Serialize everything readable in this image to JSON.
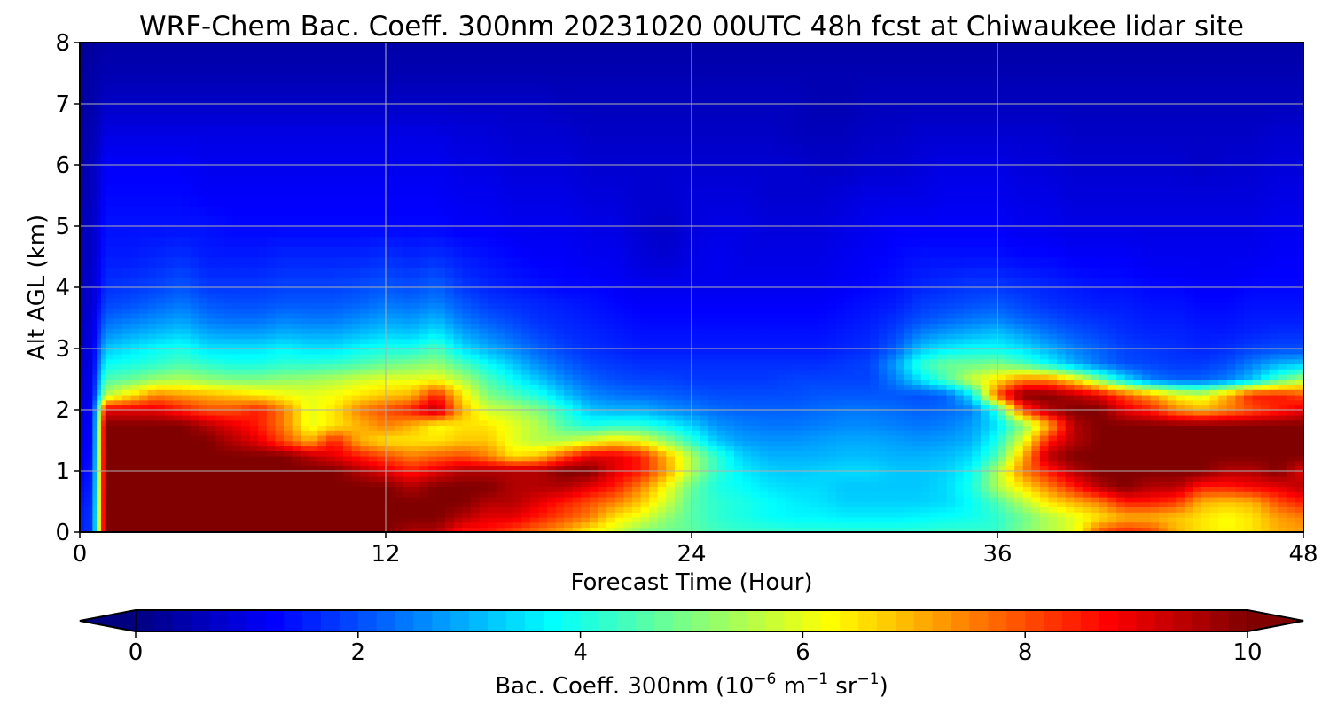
{
  "chart_data": {
    "type": "heatmap",
    "title": "WRF-Chem Bac. Coeff. 300nm  20231020 00UTC 48h fcst at Chiwaukee lidar site",
    "xlabel": "Forecast Time (Hour)",
    "ylabel": "Alt AGL (km)",
    "xlim": [
      0,
      48
    ],
    "ylim": [
      0,
      8
    ],
    "xticks": [
      "0",
      "12",
      "24",
      "36",
      "48"
    ],
    "yticks": [
      "0",
      "1",
      "2",
      "3",
      "4",
      "5",
      "6",
      "7",
      "8"
    ],
    "grid": true,
    "colormap": "jet",
    "colorbar": {
      "orientation": "horizontal",
      "placement": "bottom",
      "extend": "both",
      "range": [
        0,
        10
      ],
      "ticks": [
        "0",
        "2",
        "4",
        "6",
        "8",
        "10"
      ],
      "label_main": "Bac. Coeff. 300nm  (10",
      "label_exp1": "−6",
      "label_mid": " m",
      "label_exp2": "−1",
      "label_mid2": " sr",
      "label_exp3": "−1",
      "label_end": ")"
    },
    "time_hours": [
      0,
      0.5,
      1,
      2,
      3,
      4,
      5,
      6,
      7,
      8,
      9,
      10,
      11,
      12,
      13,
      14,
      15,
      16,
      17,
      18,
      19,
      20,
      21,
      22,
      23,
      24,
      25,
      26,
      27,
      28,
      29,
      30,
      31,
      32,
      33,
      34,
      35,
      36,
      37,
      38,
      39,
      40,
      41,
      42,
      43,
      44,
      45,
      46,
      47,
      48
    ],
    "altitude_km": [
      0,
      0.25,
      0.5,
      0.75,
      1,
      1.25,
      1.5,
      1.75,
      2,
      2.25,
      2.5,
      2.75,
      3,
      3.25,
      3.5,
      3.75,
      4,
      4.5,
      5,
      5.5,
      6,
      6.5,
      7,
      7.5,
      8
    ],
    "values": [
      [
        1.5,
        1.8,
        10,
        10,
        10,
        10,
        10,
        10,
        10,
        10,
        10,
        10,
        10,
        10,
        9.5,
        9.5,
        8.5,
        8.5,
        8,
        7.5,
        7,
        6.2,
        5.8,
        5,
        4.8,
        4.7,
        4.4,
        4.3,
        4.3,
        4.2,
        4.2,
        4.2,
        4.2,
        4.2,
        4.2,
        4.3,
        4.3,
        4.3,
        5,
        5.5,
        6,
        8,
        8.5,
        8.2,
        7,
        6.5,
        6.3,
        6.5,
        7,
        7.2
      ],
      [
        1.5,
        1.8,
        10,
        10,
        10,
        10,
        10,
        10,
        10,
        10,
        10,
        10,
        10,
        10,
        10,
        10,
        9.5,
        9,
        9,
        8.5,
        8,
        7.5,
        6.5,
        6,
        5.2,
        4.6,
        4.2,
        4,
        3.8,
        3.7,
        3.7,
        3.6,
        3.6,
        3.6,
        3.7,
        3.8,
        3.9,
        4.2,
        4.8,
        5.5,
        6,
        6.5,
        7,
        7,
        6.8,
        6.5,
        6.2,
        6.5,
        7.2,
        7.5
      ],
      [
        1.4,
        1.7,
        10,
        10,
        10,
        10,
        10,
        10,
        10,
        10,
        10,
        10,
        10,
        10,
        10,
        10,
        10,
        9.5,
        9.5,
        9,
        8.5,
        8,
        7.5,
        6.8,
        5.8,
        4.6,
        4.2,
        4,
        3.8,
        3.6,
        3.5,
        3.3,
        3.3,
        3.3,
        3.3,
        3.4,
        3.8,
        4.5,
        5.5,
        6.5,
        7,
        7.5,
        8.5,
        8.5,
        8.2,
        7,
        6.8,
        7,
        8,
        8.5
      ],
      [
        1.3,
        1.6,
        10,
        10,
        10,
        10,
        10,
        10,
        10,
        10,
        10,
        10,
        10,
        10,
        9.5,
        10,
        10,
        10,
        9.5,
        9.5,
        9.5,
        9,
        8.5,
        7.5,
        6.2,
        4.8,
        4,
        3.8,
        3.5,
        3.4,
        3.4,
        3.2,
        3.2,
        3.2,
        3.2,
        3.4,
        4,
        5.5,
        6.5,
        7.5,
        8.5,
        9.5,
        10,
        9.5,
        9.5,
        8.5,
        8.5,
        8.8,
        9,
        9.5
      ],
      [
        1.2,
        1.5,
        10,
        10,
        10,
        10,
        10,
        10,
        10,
        10,
        10,
        10,
        9.5,
        9,
        8.5,
        9,
        9.5,
        9.5,
        9.5,
        9.5,
        10,
        10,
        9,
        8.5,
        7.2,
        5.5,
        4.2,
        3.6,
        3.3,
        3.2,
        3.3,
        3.4,
        3.4,
        3.2,
        3.2,
        3.3,
        3.8,
        5.5,
        7.5,
        8.5,
        9.5,
        10,
        10,
        10,
        10,
        10,
        9.5,
        9.5,
        10,
        9
      ],
      [
        1.1,
        1.4,
        10,
        10,
        10,
        10,
        10,
        10,
        10,
        10,
        9.5,
        9,
        8.5,
        8,
        7.5,
        7.8,
        8,
        7.5,
        6.5,
        6.8,
        8,
        9,
        9,
        8.5,
        7,
        5.5,
        4.2,
        3.3,
        3,
        3,
        3,
        3.1,
        3.1,
        3,
        3,
        3.1,
        3.4,
        4.5,
        7,
        9.5,
        10,
        10,
        10,
        10,
        10,
        10,
        10,
        10,
        10,
        10
      ],
      [
        1,
        1.3,
        10,
        10,
        10,
        10,
        10,
        9.5,
        9,
        8,
        7,
        8.5,
        7,
        6.5,
        6.5,
        6.5,
        6.8,
        6.8,
        6,
        5.5,
        5.5,
        6,
        6.5,
        6.2,
        5.2,
        4.2,
        3.2,
        2.8,
        2.7,
        2.7,
        2.8,
        2.9,
        2.9,
        2.8,
        2.7,
        2.8,
        3,
        4,
        6,
        8.5,
        9.5,
        10,
        10,
        10,
        10,
        10,
        10,
        10,
        10,
        10
      ],
      [
        1,
        1.2,
        10,
        10,
        10,
        10,
        9.5,
        9,
        8.5,
        7.5,
        6,
        6.5,
        7,
        7.5,
        7,
        6.2,
        6.5,
        6.5,
        6,
        5.5,
        4.5,
        4,
        4.2,
        4.2,
        3.8,
        3.3,
        2.7,
        2.5,
        2.4,
        2.4,
        2.5,
        2.6,
        2.6,
        2.5,
        2.4,
        2.5,
        2.8,
        3.5,
        5,
        7,
        9.5,
        10,
        10,
        10,
        10,
        10,
        10,
        10,
        10,
        10
      ],
      [
        0.9,
        1.2,
        9,
        9,
        9,
        8.5,
        8,
        8,
        8.5,
        7.5,
        6,
        6.5,
        7.5,
        8,
        8.5,
        9.5,
        7,
        5.8,
        5.5,
        5,
        4.1,
        3.2,
        3,
        3,
        2.7,
        2.5,
        2.3,
        2.2,
        2.2,
        2.2,
        2.3,
        2.4,
        2.4,
        2.3,
        2.2,
        2.3,
        2.5,
        4,
        8,
        9.5,
        10,
        10,
        9,
        8.5,
        7.5,
        7,
        7.5,
        8,
        8.5,
        9
      ],
      [
        0.9,
        1.1,
        5.5,
        6.5,
        7.5,
        7.2,
        7,
        6.8,
        6.5,
        6.2,
        6,
        6.2,
        6.5,
        6.8,
        7,
        8.5,
        6.5,
        5,
        4.5,
        4,
        3.2,
        2.6,
        2.4,
        2.3,
        2.2,
        2.1,
        2,
        2,
        2,
        2,
        2.1,
        2.1,
        2.1,
        2.1,
        2,
        2.2,
        3.5,
        8,
        10,
        10,
        9.5,
        9,
        8,
        7.2,
        6.2,
        5.8,
        7,
        8.5,
        8.5,
        8
      ],
      [
        0.8,
        1.1,
        4.5,
        4.8,
        5.3,
        5.5,
        5.2,
        5,
        5,
        5.2,
        5.3,
        5.5,
        5.8,
        6,
        6,
        6.2,
        5.5,
        4.5,
        3.8,
        3.2,
        2.6,
        2.2,
        2,
        1.9,
        1.9,
        1.8,
        1.8,
        1.8,
        1.8,
        1.9,
        1.9,
        1.9,
        1.9,
        2.5,
        3.5,
        4.5,
        5.8,
        6.5,
        7.5,
        7.5,
        6.5,
        5,
        3.5,
        2.5,
        2.2,
        2.2,
        2.5,
        3.2,
        4.5,
        5.5
      ],
      [
        0.8,
        1,
        3.8,
        4,
        4.2,
        4.5,
        4.2,
        4,
        4,
        4.2,
        4.2,
        4.3,
        4.5,
        4.8,
        5,
        5.2,
        4.5,
        3.8,
        3.2,
        2.6,
        2.2,
        1.9,
        1.8,
        1.7,
        1.7,
        1.7,
        1.7,
        1.7,
        1.7,
        1.7,
        1.7,
        1.8,
        1.9,
        2.8,
        4.2,
        4.8,
        4.8,
        5,
        4.5,
        3.8,
        3,
        2.4,
        2,
        1.9,
        1.8,
        1.8,
        2,
        2.5,
        3,
        3.2
      ],
      [
        0.7,
        1,
        3.2,
        3.5,
        3.8,
        4,
        3.5,
        3.5,
        3.5,
        3.7,
        3.5,
        3.5,
        3.8,
        4,
        4,
        4.5,
        3.5,
        3,
        2.6,
        2.2,
        1.9,
        1.7,
        1.6,
        1.5,
        1.5,
        1.5,
        1.5,
        1.5,
        1.5,
        1.5,
        1.5,
        1.6,
        1.7,
        2.2,
        3.2,
        3.6,
        3.8,
        3.8,
        3.5,
        3,
        2.5,
        2.2,
        1.9,
        1.8,
        1.7,
        1.6,
        1.7,
        1.9,
        2,
        2
      ],
      [
        0.7,
        0.9,
        2.6,
        2.9,
        3.1,
        3.3,
        2.9,
        2.8,
        2.8,
        3,
        2.9,
        2.9,
        3.1,
        3.3,
        3.2,
        3.6,
        2.9,
        2.5,
        2.2,
        1.9,
        1.7,
        1.6,
        1.5,
        1.4,
        1.4,
        1.4,
        1.4,
        1.4,
        1.4,
        1.4,
        1.4,
        1.5,
        1.6,
        1.9,
        2.5,
        2.8,
        3,
        3.2,
        2.8,
        2.4,
        2.1,
        1.9,
        1.7,
        1.6,
        1.6,
        1.5,
        1.5,
        1.6,
        1.7,
        1.7
      ],
      [
        0.6,
        0.9,
        2.2,
        2.4,
        2.6,
        2.8,
        2.4,
        2.3,
        2.3,
        2.5,
        2.4,
        2.4,
        2.6,
        2.8,
        2.7,
        3,
        2.4,
        2.1,
        1.9,
        1.7,
        1.6,
        1.5,
        1.4,
        1.3,
        1.3,
        1.3,
        1.3,
        1.3,
        1.3,
        1.3,
        1.3,
        1.4,
        1.5,
        1.7,
        2,
        2.2,
        2.4,
        2.5,
        2.2,
        2,
        1.8,
        1.7,
        1.6,
        1.5,
        1.5,
        1.4,
        1.4,
        1.5,
        1.5,
        1.5
      ],
      [
        0.6,
        0.8,
        1.9,
        2,
        2.2,
        2.4,
        2.1,
        2,
        2,
        2.1,
        2.1,
        2.1,
        2.2,
        2.4,
        2.3,
        2.5,
        2.1,
        1.8,
        1.7,
        1.6,
        1.5,
        1.4,
        1.3,
        1.2,
        1.2,
        1.2,
        1.2,
        1.2,
        1.2,
        1.2,
        1.2,
        1.3,
        1.4,
        1.5,
        1.8,
        1.9,
        2,
        2.1,
        1.9,
        1.7,
        1.6,
        1.5,
        1.5,
        1.4,
        1.4,
        1.3,
        1.3,
        1.4,
        1.4,
        1.4
      ],
      [
        0.6,
        0.8,
        1.7,
        1.8,
        1.9,
        2.1,
        1.8,
        1.8,
        1.8,
        1.9,
        1.9,
        1.9,
        2,
        2.1,
        2,
        2.2,
        1.8,
        1.6,
        1.5,
        1.4,
        1.3,
        1.3,
        1.2,
        1.1,
        1.1,
        1.1,
        1.1,
        1.1,
        1.1,
        1.1,
        1.1,
        1.2,
        1.3,
        1.4,
        1.6,
        1.7,
        1.8,
        1.8,
        1.7,
        1.6,
        1.5,
        1.4,
        1.4,
        1.3,
        1.3,
        1.2,
        1.2,
        1.3,
        1.3,
        1.3
      ],
      [
        0.5,
        0.7,
        1.5,
        1.5,
        1.6,
        1.7,
        1.5,
        1.5,
        1.5,
        1.6,
        1.6,
        1.6,
        1.6,
        1.7,
        1.6,
        1.7,
        1.5,
        1.4,
        1.3,
        1.2,
        1.2,
        1.1,
        1.1,
        0.9,
        0.8,
        1,
        1.1,
        1,
        1,
        1,
        1,
        1.1,
        1.2,
        1.3,
        1.4,
        1.4,
        1.4,
        1.4,
        1.3,
        1.3,
        1.2,
        1.2,
        1.2,
        1.1,
        1.1,
        1.1,
        1.1,
        1.1,
        1.2,
        1.2
      ],
      [
        0.5,
        0.7,
        1.4,
        1.4,
        1.4,
        1.4,
        1.4,
        1.3,
        1.3,
        1.3,
        1.3,
        1.3,
        1.3,
        1.3,
        1.3,
        1.3,
        1.2,
        1.2,
        1.1,
        1.1,
        1.1,
        1,
        1,
        0.8,
        0.7,
        0.9,
        1,
        1,
        0.9,
        0.9,
        0.9,
        1,
        1.1,
        1.2,
        1.2,
        1.2,
        1.2,
        1.2,
        1.1,
        1.1,
        1,
        1,
        1,
        1,
        1,
        1,
        1,
        1,
        1.1,
        1.1
      ],
      [
        0.5,
        0.6,
        1.3,
        1.3,
        1.3,
        1.3,
        1.2,
        1.2,
        1.2,
        1.2,
        1.2,
        1.2,
        1.2,
        1.2,
        1.2,
        1.2,
        1.1,
        1.1,
        1,
        1,
        1,
        0.9,
        0.9,
        0.8,
        0.8,
        0.9,
        0.9,
        0.9,
        0.8,
        0.8,
        0.8,
        0.9,
        1,
        1,
        1,
        1.1,
        1.1,
        1.1,
        1,
        1,
        0.9,
        0.9,
        0.9,
        0.9,
        0.9,
        0.9,
        0.9,
        0.9,
        1,
        1
      ],
      [
        0.4,
        0.6,
        1.2,
        1.2,
        1.2,
        1.2,
        1.1,
        1.1,
        1.1,
        1.1,
        1.1,
        1.1,
        1.1,
        1.1,
        1.1,
        1.1,
        1,
        1,
        0.9,
        0.9,
        0.9,
        0.8,
        0.8,
        0.8,
        0.8,
        0.8,
        0.8,
        0.8,
        0.8,
        0.8,
        0.7,
        0.7,
        0.8,
        0.8,
        0.9,
        1,
        1,
        1,
        0.9,
        0.9,
        0.8,
        0.8,
        0.8,
        0.8,
        0.8,
        0.7,
        0.8,
        0.8,
        0.9,
        0.9
      ],
      [
        0.4,
        0.5,
        1,
        1,
        1,
        1,
        1,
        1,
        1,
        1,
        1,
        1,
        1,
        1,
        1,
        1,
        0.9,
        0.9,
        0.8,
        0.8,
        0.8,
        0.7,
        0.7,
        0.7,
        0.7,
        0.7,
        0.7,
        0.7,
        0.7,
        0.6,
        0.6,
        0.6,
        0.7,
        0.7,
        0.8,
        0.8,
        0.8,
        0.8,
        0.8,
        0.8,
        0.7,
        0.7,
        0.7,
        0.7,
        0.7,
        0.7,
        0.7,
        0.7,
        0.8,
        0.8
      ],
      [
        0.3,
        0.4,
        0.7,
        0.7,
        0.7,
        0.7,
        0.7,
        0.7,
        0.7,
        0.7,
        0.7,
        0.7,
        0.7,
        0.7,
        0.7,
        0.7,
        0.7,
        0.7,
        0.7,
        0.7,
        0.6,
        0.6,
        0.6,
        0.6,
        0.6,
        0.6,
        0.6,
        0.6,
        0.6,
        0.6,
        0.5,
        0.5,
        0.6,
        0.6,
        0.6,
        0.6,
        0.6,
        0.6,
        0.6,
        0.6,
        0.6,
        0.6,
        0.6,
        0.6,
        0.6,
        0.6,
        0.6,
        0.6,
        0.6,
        0.6
      ],
      [
        0.3,
        0.4,
        0.5,
        0.5,
        0.5,
        0.5,
        0.5,
        0.5,
        0.5,
        0.5,
        0.5,
        0.5,
        0.5,
        0.5,
        0.5,
        0.5,
        0.5,
        0.5,
        0.5,
        0.5,
        0.5,
        0.5,
        0.5,
        0.5,
        0.5,
        0.5,
        0.5,
        0.5,
        0.5,
        0.5,
        0.5,
        0.5,
        0.5,
        0.5,
        0.5,
        0.5,
        0.5,
        0.5,
        0.5,
        0.5,
        0.5,
        0.5,
        0.5,
        0.5,
        0.5,
        0.5,
        0.5,
        0.5,
        0.5,
        0.5
      ],
      [
        0.2,
        0.3,
        0.4,
        0.4,
        0.4,
        0.4,
        0.4,
        0.4,
        0.4,
        0.4,
        0.4,
        0.4,
        0.4,
        0.4,
        0.4,
        0.4,
        0.4,
        0.4,
        0.4,
        0.4,
        0.4,
        0.4,
        0.4,
        0.4,
        0.4,
        0.4,
        0.4,
        0.4,
        0.4,
        0.4,
        0.4,
        0.4,
        0.4,
        0.4,
        0.4,
        0.4,
        0.4,
        0.4,
        0.4,
        0.4,
        0.4,
        0.4,
        0.4,
        0.4,
        0.4,
        0.4,
        0.4,
        0.4,
        0.4,
        0.4
      ]
    ]
  }
}
